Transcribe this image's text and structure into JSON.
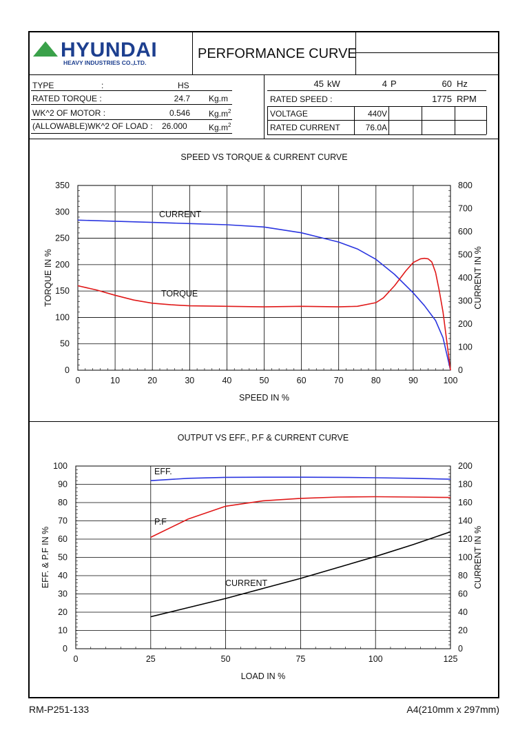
{
  "header": {
    "logo": {
      "brand": "HYUNDAI",
      "sub": "HEAVY INDUSTRIES CO.,LTD.",
      "icon": "triangle-logo-icon"
    },
    "title": "PERFORMANCE CURVE"
  },
  "specs_left": {
    "type_label": "TYPE",
    "type_colon": ":",
    "type_value": "HS",
    "torque_label": "RATED TORQUE :",
    "torque_value": "24.7",
    "torque_unit": "Kg.m",
    "wk_motor_label": "WK^2 OF MOTOR :",
    "wk_motor_value": "0.546",
    "wk_motor_unit": "Kg.m",
    "wk_motor_exp": "2",
    "wk_load_label": "(ALLOWABLE)WK^2 OF LOAD :",
    "wk_load_value": "26.000",
    "wk_load_unit": "Kg.m",
    "wk_load_exp": "2"
  },
  "specs_right": {
    "power_value": "45",
    "power_unit": "kW",
    "poles_value": "4",
    "poles_unit": "P",
    "freq_value": "60",
    "freq_unit": "Hz",
    "speed_label": "RATED SPEED :",
    "speed_value": "1775",
    "speed_unit": "RPM",
    "voltage_label": "VOLTAGE",
    "voltage_value": "440V",
    "current_label": "RATED CURRENT",
    "current_value": "76.0A"
  },
  "footer": {
    "doc_code": "RM-P251-133",
    "paper_size": "A4(210mm x 297mm)"
  },
  "colors": {
    "blue": "#2a35e0",
    "red": "#e01818",
    "black": "#000000",
    "logo_blue": "#1d3f8f",
    "logo_green": "#3aa14a"
  },
  "chart_data": [
    {
      "type": "line",
      "title": "SPEED VS TORQUE & CURRENT CURVE",
      "xlabel": "SPEED IN %",
      "ylabel": "TORQUE IN %",
      "y2label": "CURRENT IN %",
      "xlim": [
        0,
        100
      ],
      "ylim": [
        0,
        350
      ],
      "y2lim": [
        0,
        800
      ],
      "xticks": [
        0,
        10,
        20,
        30,
        40,
        50,
        60,
        70,
        80,
        90,
        100
      ],
      "yticks": [
        0,
        50,
        100,
        150,
        200,
        250,
        300,
        350
      ],
      "y2ticks": [
        0,
        100,
        200,
        300,
        400,
        500,
        600,
        700,
        800
      ],
      "grid": true,
      "series": [
        {
          "name": "CURRENT",
          "axis": "right",
          "color": "blue",
          "x": [
            0,
            10,
            20,
            30,
            40,
            50,
            60,
            65,
            70,
            75,
            80,
            85,
            90,
            93,
            96,
            98,
            100
          ],
          "y": [
            650,
            645,
            640,
            635,
            630,
            620,
            595,
            575,
            555,
            525,
            480,
            415,
            335,
            280,
            215,
            140,
            0
          ]
        },
        {
          "name": "TORQUE",
          "axis": "left",
          "color": "red",
          "x": [
            0,
            5,
            10,
            15,
            20,
            25,
            30,
            40,
            50,
            60,
            70,
            75,
            80,
            82,
            85,
            88,
            90,
            92,
            93,
            94,
            95,
            96,
            97,
            98,
            99,
            100
          ],
          "y": [
            160,
            152,
            142,
            133,
            127,
            124,
            122,
            121,
            120,
            121,
            120,
            121,
            128,
            137,
            160,
            188,
            204,
            211,
            212,
            211,
            205,
            185,
            150,
            110,
            55,
            0
          ]
        }
      ],
      "annotations": [
        "CURRENT",
        "TORQUE"
      ]
    },
    {
      "type": "line",
      "title": "OUTPUT VS EFF., P.F & CURRENT CURVE",
      "xlabel": "LOAD IN %",
      "ylabel": "EFF. & P.F IN %",
      "y2label": "CURRENT IN %",
      "xlim": [
        0,
        125
      ],
      "ylim": [
        0,
        100
      ],
      "y2lim": [
        0,
        200
      ],
      "xticks": [
        0,
        25,
        50,
        75,
        100,
        125
      ],
      "yticks": [
        0,
        10,
        20,
        30,
        40,
        50,
        60,
        70,
        80,
        90,
        100
      ],
      "y2ticks": [
        0,
        20,
        40,
        60,
        80,
        100,
        120,
        140,
        160,
        180,
        200
      ],
      "grid": true,
      "series": [
        {
          "name": "EFF.",
          "axis": "left",
          "color": "blue",
          "x": [
            25,
            37.5,
            50,
            62.5,
            75,
            87.5,
            100,
            112.5,
            125
          ],
          "y": [
            92.0,
            93.3,
            93.8,
            93.9,
            93.9,
            93.8,
            93.6,
            93.3,
            92.8
          ]
        },
        {
          "name": "P.F",
          "axis": "left",
          "color": "red",
          "x": [
            25,
            37.5,
            50,
            62.5,
            75,
            87.5,
            100,
            112.5,
            125
          ],
          "y": [
            61.0,
            71.0,
            78.0,
            81.0,
            82.3,
            83.0,
            83.2,
            83.0,
            82.8
          ]
        },
        {
          "name": "CURRENT",
          "axis": "right",
          "color": "black",
          "x": [
            25,
            37.5,
            50,
            62.5,
            75,
            87.5,
            100,
            112.5,
            125
          ],
          "y": [
            35,
            45,
            55,
            66,
            77,
            89,
            101,
            114,
            128
          ]
        }
      ],
      "annotations": [
        "EFF.",
        "P.F",
        "CURRENT"
      ]
    }
  ]
}
